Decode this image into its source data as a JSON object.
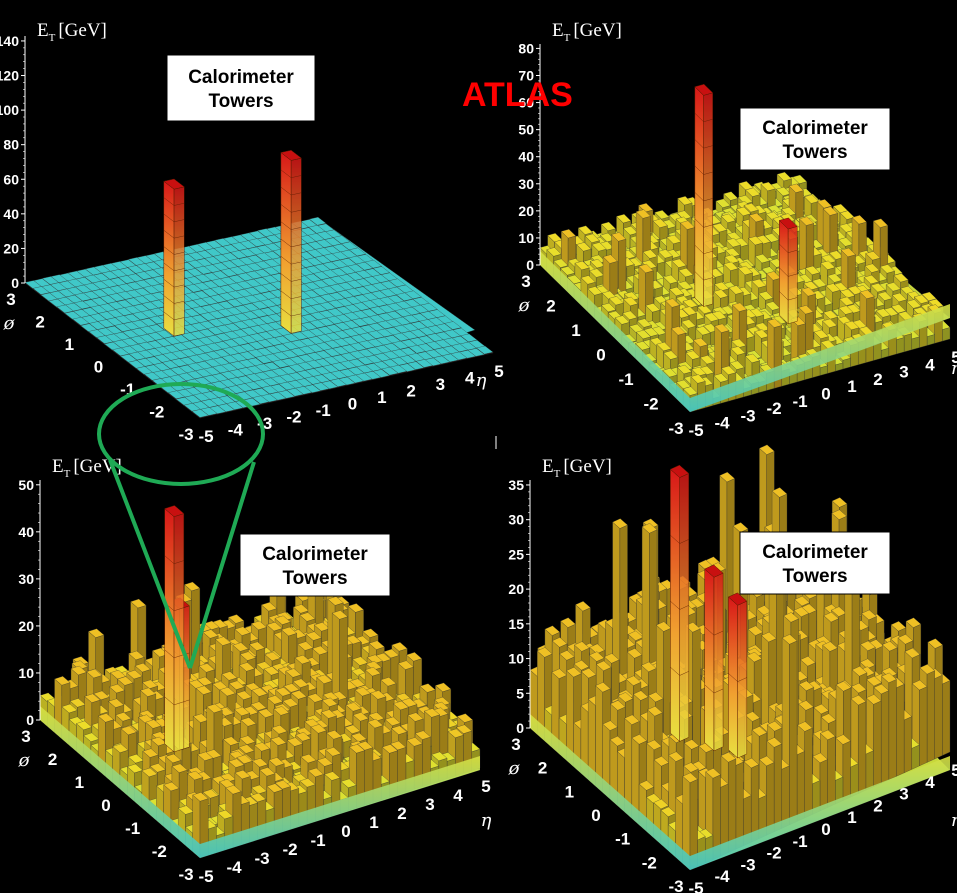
{
  "brand": {
    "label": "ATLAS",
    "color": "#ff0000"
  },
  "cone_color": "#1faa55",
  "chart_data": [
    {
      "type": "bar",
      "panel": "top-left",
      "title": "Calorimeter Towers",
      "ylabel_main": "E",
      "ylabel_sub": "T",
      "ylabel_unit": "[GeV]",
      "xlabel": "η",
      "zlabel": "ø",
      "ylim": [
        0,
        140
      ],
      "yticks": [
        "0",
        "20",
        "40",
        "60",
        "80",
        "100",
        "120",
        "140"
      ],
      "xticks": [
        "-5",
        "-4",
        "-3",
        "-2",
        "-1",
        "0",
        "1",
        "2",
        "3",
        "4",
        "5"
      ],
      "zticks": [
        "-3",
        "-2",
        "-1",
        "0",
        "1",
        "2",
        "3"
      ],
      "background_level": 0.5,
      "background_color": "#40c8c8",
      "peaks": [
        {
          "eta": -2.7,
          "phi": 0.2,
          "value": 85
        },
        {
          "eta": 0.5,
          "phi": -0.6,
          "value": 100
        }
      ]
    },
    {
      "type": "bar",
      "panel": "top-right",
      "title": "Calorimeter Towers",
      "ylabel_main": "E",
      "ylabel_sub": "T",
      "ylabel_unit": "[GeV]",
      "xlabel": "η",
      "zlabel": "ø",
      "ylim": [
        0,
        80
      ],
      "yticks": [
        "0",
        "10",
        "20",
        "30",
        "40",
        "50",
        "60",
        "70",
        "80"
      ],
      "xticks": [
        "-5",
        "-4",
        "-3",
        "-2",
        "-1",
        "0",
        "1",
        "2",
        "3",
        "4",
        "5"
      ],
      "zticks": [
        "-3",
        "-2",
        "-1",
        "0",
        "1",
        "2",
        "3"
      ],
      "background_level": 5,
      "peaks": [
        {
          "eta": -1.2,
          "phi": 0.4,
          "value": 78
        },
        {
          "eta": 0.8,
          "phi": -0.9,
          "value": 35
        }
      ]
    },
    {
      "type": "bar",
      "panel": "bottom-left",
      "title": "Calorimeter Towers",
      "ylabel_main": "E",
      "ylabel_sub": "T",
      "ylabel_unit": "[GeV]",
      "xlabel": "η",
      "zlabel": "ø",
      "ylim": [
        0,
        50
      ],
      "yticks": [
        "0",
        "10",
        "20",
        "30",
        "40",
        "50"
      ],
      "xticks": [
        "-5",
        "-4",
        "-3",
        "-2",
        "-1",
        "0",
        "1",
        "2",
        "3",
        "4",
        "5"
      ],
      "zticks": [
        "-3",
        "-2",
        "-1",
        "0",
        "1",
        "2",
        "3"
      ],
      "background_level": 6,
      "peaks": [
        {
          "eta": -2.3,
          "phi": 0.8,
          "value": 50
        },
        {
          "eta": -2.1,
          "phi": 0.8,
          "value": 30
        }
      ]
    },
    {
      "type": "bar",
      "panel": "bottom-right",
      "title": "Calorimeter Towers",
      "ylabel_main": "E",
      "ylabel_sub": "T",
      "ylabel_unit": "[GeV]",
      "xlabel": "η",
      "zlabel": "ø",
      "ylim": [
        0,
        35
      ],
      "yticks": [
        "0",
        "5",
        "10",
        "15",
        "20",
        "25",
        "30",
        "35"
      ],
      "xticks": [
        "-5",
        "-4",
        "-3",
        "-2",
        "-1",
        "0",
        "1",
        "2",
        "3",
        "4",
        "5"
      ],
      "zticks": [
        "-3",
        "-2",
        "-1",
        "0",
        "1",
        "2",
        "3"
      ],
      "background_level": 7,
      "peaks": [
        {
          "eta": -1.4,
          "phi": 0.9,
          "value": 38
        },
        {
          "eta": -0.8,
          "phi": 0.2,
          "value": 25
        },
        {
          "eta": -0.4,
          "phi": -0.3,
          "value": 22
        }
      ]
    }
  ]
}
